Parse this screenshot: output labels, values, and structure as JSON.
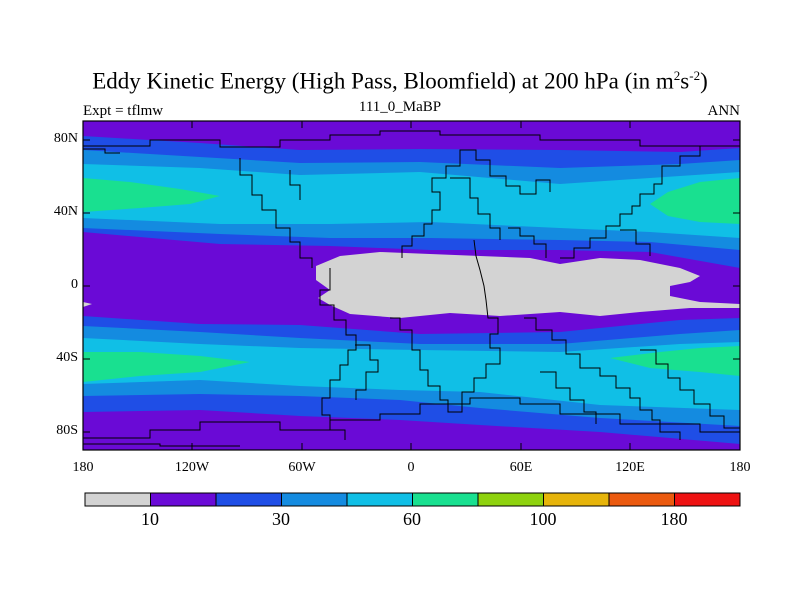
{
  "title": {
    "main": "Eddy Kinetic Energy (High Pass, Bloomfield) at 200 hPa (in m",
    "sup1": "2",
    "mid": "s",
    "sup2": "-2",
    "close": ")"
  },
  "subtitle": {
    "left": "Expt = tflmw",
    "center": "111_0_MaBP",
    "right": "ANN"
  },
  "map": {
    "lat_labels": [
      "80N",
      "40N",
      "0",
      "40S",
      "80S"
    ],
    "lon_labels": [
      "180",
      "120W",
      "60W",
      "0",
      "60E",
      "120E",
      "180"
    ]
  },
  "colorbar": {
    "colors": [
      "#d3d3d3",
      "#6a0ad6",
      "#1f4ee6",
      "#148be0",
      "#10bfe6",
      "#19e090",
      "#8ed20e",
      "#e6b40a",
      "#eb5a0f",
      "#ee1212"
    ],
    "labels": [
      "10",
      "30",
      "60",
      "100",
      "180"
    ]
  },
  "colors": {
    "grey": "#d3d3d3",
    "purple": "#6a0ad6",
    "blue": "#1f4ee6",
    "mid_blue": "#148be0",
    "cyan": "#10bfe6",
    "green": "#19e090"
  }
}
